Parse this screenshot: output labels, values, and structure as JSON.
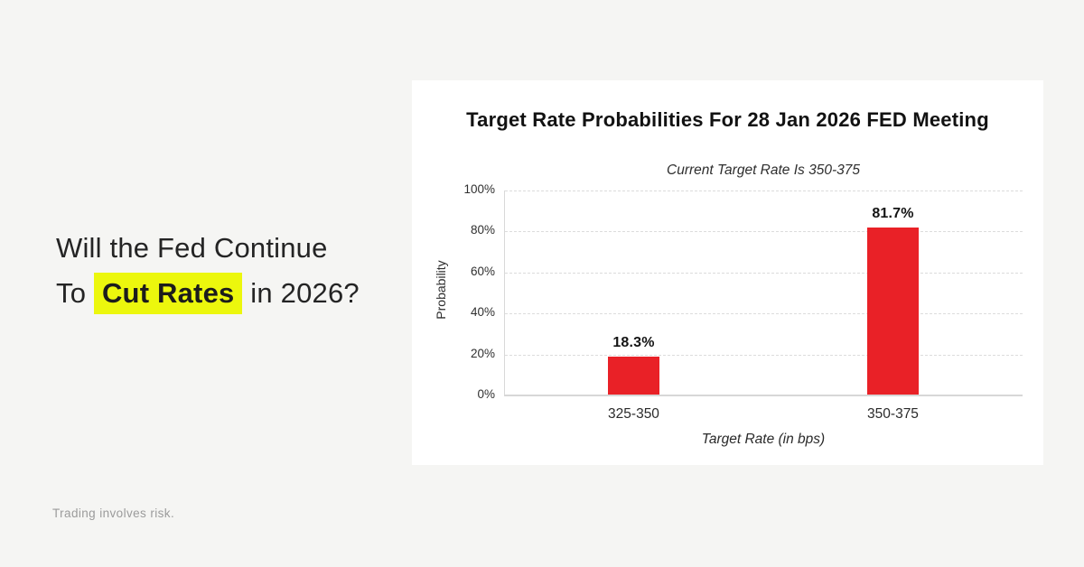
{
  "page": {
    "background_color": "#f5f5f3",
    "card_color": "#ffffff"
  },
  "headline": {
    "line1": "Will the Fed Continue",
    "line2_prefix": "To ",
    "line2_highlight": "Cut Rates",
    "line2_suffix": " in 2026?",
    "highlight_color": "#ecf70d",
    "text_color": "#242424"
  },
  "disclaimer": "Trading involves risk.",
  "chart_data": {
    "type": "bar",
    "title": "Target Rate Probabilities For 28 Jan 2026 FED Meeting",
    "subtitle": "Current Target Rate Is 350-375",
    "categories": [
      "325-350",
      "350-375"
    ],
    "values": [
      18.3,
      81.7
    ],
    "value_labels": [
      "18.3%",
      "81.7%"
    ],
    "xlabel": "Target Rate (in bps)",
    "ylabel": "Probability",
    "ylim": [
      0,
      100
    ],
    "yticks": [
      "0%",
      "20%",
      "40%",
      "60%",
      "80%",
      "100%"
    ],
    "bar_color": "#e92127",
    "grid": "horizontal-dashed",
    "legend": "none"
  }
}
